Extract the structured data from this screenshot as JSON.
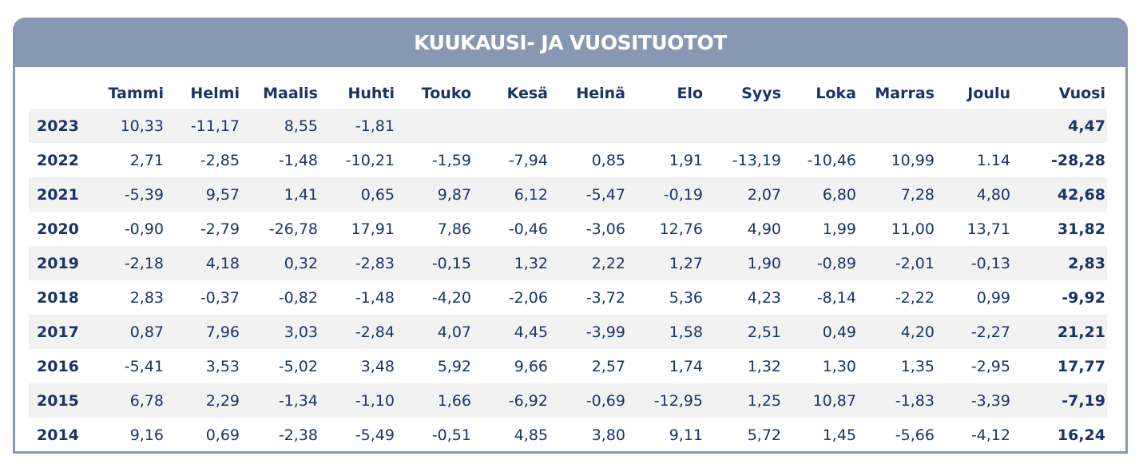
{
  "title": "KUUKAUSI- JA VUOSITUOTOT",
  "columns": [
    "",
    "Tammi",
    "Helmi",
    "Maalis",
    "Huhti",
    "Touko",
    "Kesä",
    "Heinä",
    "Elo",
    "Syys",
    "Loka",
    "Marras",
    "Joulu",
    "Vuosi"
  ],
  "rows": [
    [
      "2023",
      "10,33",
      "-11,17",
      "8,55",
      "-1,81",
      "",
      "",
      "",
      "",
      "",
      "",
      "",
      "",
      "4,47"
    ],
    [
      "2022",
      "2,71",
      "-2,85",
      "-1,48",
      "-10,21",
      "-1,59",
      "-7,94",
      "0,85",
      "1,91",
      "-13,19",
      "-10,46",
      "10,99",
      "1.14",
      "-28,28"
    ],
    [
      "2021",
      "-5,39",
      "9,57",
      "1,41",
      "0,65",
      "9,87",
      "6,12",
      "-5,47",
      "-0,19",
      "2,07",
      "6,80",
      "7,28",
      "4,80",
      "42,68"
    ],
    [
      "2020",
      "-0,90",
      "-2,79",
      "-26,78",
      "17,91",
      "7,86",
      "-0,46",
      "-3,06",
      "12,76",
      "4,90",
      "1,99",
      "11,00",
      "13,71",
      "31,82"
    ],
    [
      "2019",
      "-2,18",
      "4,18",
      "0,32",
      "-2,83",
      "-0,15",
      "1,32",
      "2,22",
      "1,27",
      "1,90",
      "-0,89",
      "-2,01",
      "-0,13",
      "2,83"
    ],
    [
      "2018",
      "2,83",
      "-0,37",
      "-0,82",
      "-1,48",
      "-4,20",
      "-2,06",
      "-3,72",
      "5,36",
      "4,23",
      "-8,14",
      "-2,22",
      "0,99",
      "-9,92"
    ],
    [
      "2017",
      "0,87",
      "7,96",
      "3,03",
      "-2,84",
      "4,07",
      "4,45",
      "-3,99",
      "1,58",
      "2,51",
      "0,49",
      "4,20",
      "-2,27",
      "21,21"
    ],
    [
      "2016",
      "-5,41",
      "3,53",
      "-5,02",
      "3,48",
      "5,92",
      "9,66",
      "2,57",
      "1,74",
      "1,32",
      "1,30",
      "1,35",
      "-2,95",
      "17,77"
    ],
    [
      "2015",
      "6,78",
      "2,29",
      "-1,34",
      "-1,10",
      "1,66",
      "-6,92",
      "-0,69",
      "-12,95",
      "1,25",
      "10,87",
      "-1,83",
      "-3,39",
      "-7,19"
    ],
    [
      "2014",
      "9,16",
      "0,69",
      "-2,38",
      "-5,49",
      "-0,51",
      "4,85",
      "3,80",
      "9,11",
      "5,72",
      "1,45",
      "-5,66",
      "-4,12",
      "16,24"
    ]
  ],
  "colors": {
    "header": "#8698b2",
    "text": "#1a3466",
    "stripe": "#f2f2f2"
  }
}
